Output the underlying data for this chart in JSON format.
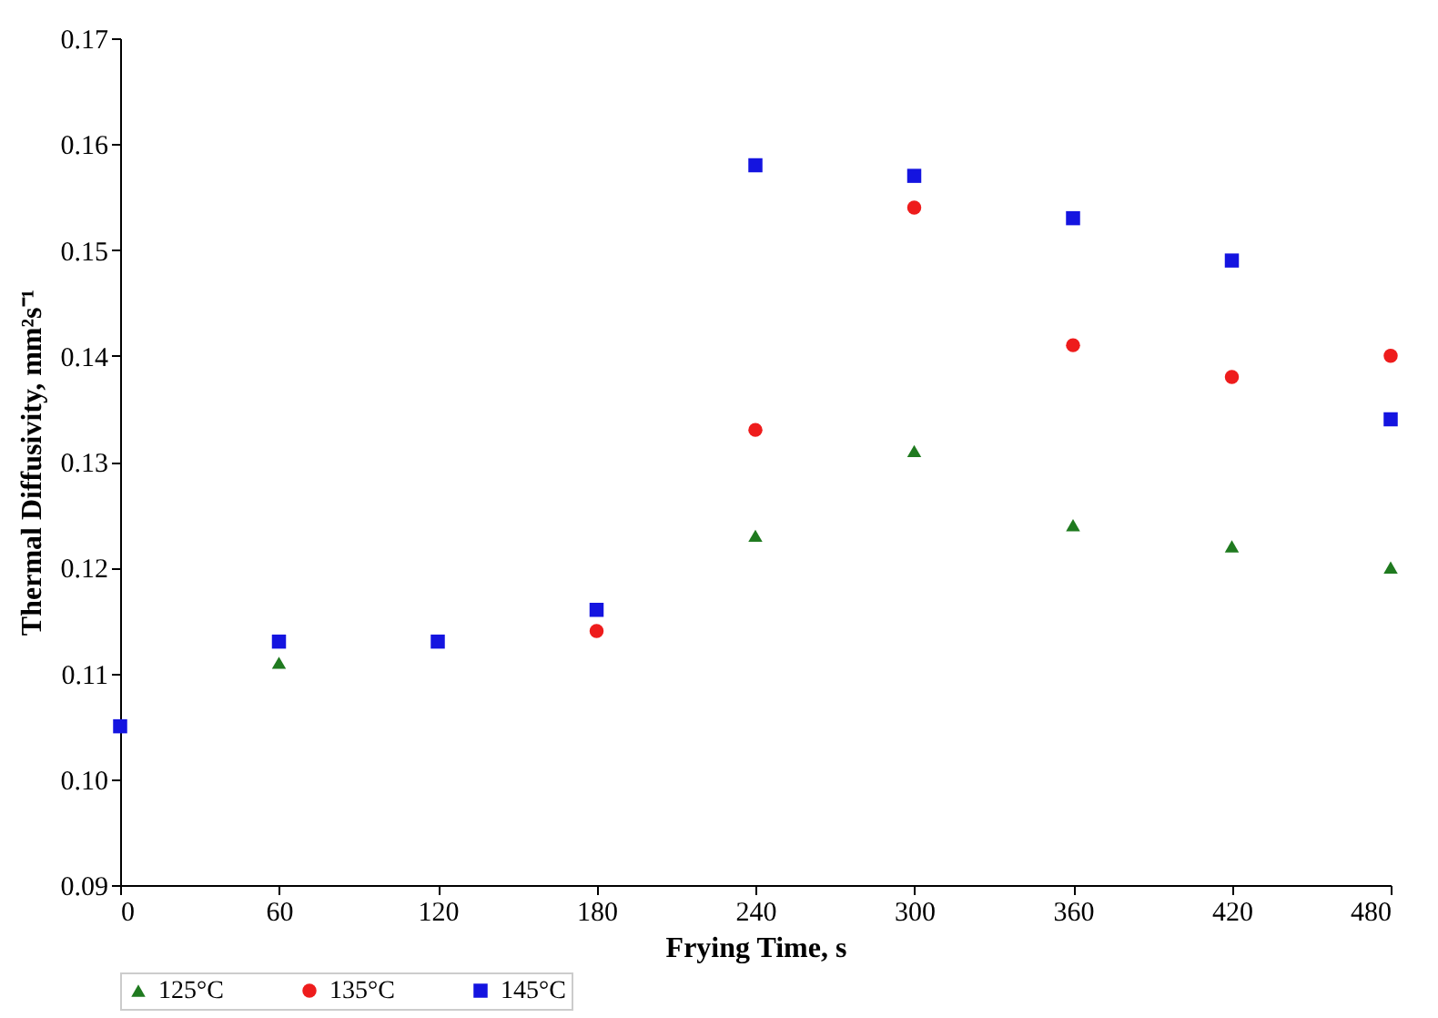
{
  "chart_data": {
    "type": "scatter",
    "xlabel": "Frying Time, s",
    "ylabel": "Thermal Diffusivity, mm²s⁻¹",
    "x": [
      0,
      60,
      120,
      180,
      240,
      300,
      360,
      420,
      480
    ],
    "series": [
      {
        "name": "125°C",
        "color": "#1f7a1f",
        "marker": "triangle",
        "values": [
          null,
          0.111,
          null,
          null,
          0.123,
          0.131,
          0.124,
          0.122,
          0.12
        ]
      },
      {
        "name": "135°C",
        "color": "#ee1c1c",
        "marker": "circle",
        "values": [
          null,
          null,
          null,
          0.114,
          0.133,
          0.154,
          0.141,
          0.138,
          0.14
        ]
      },
      {
        "name": "145°C",
        "color": "#1414e0",
        "marker": "square",
        "values": [
          0.105,
          0.113,
          0.113,
          0.116,
          0.158,
          0.157,
          0.153,
          0.149,
          0.134
        ]
      }
    ],
    "xlim": [
      0,
      480
    ],
    "xticks": [
      0,
      60,
      120,
      180,
      240,
      300,
      360,
      420,
      480
    ],
    "ylim": [
      0.09,
      0.17
    ],
    "yticks": [
      0.09,
      {
        "value": 0.1,
        "label": "0.10"
      },
      0.11,
      0.12,
      0.13,
      0.14,
      0.15,
      0.16,
      0.17
    ],
    "grid": false,
    "legend": "bottom"
  }
}
